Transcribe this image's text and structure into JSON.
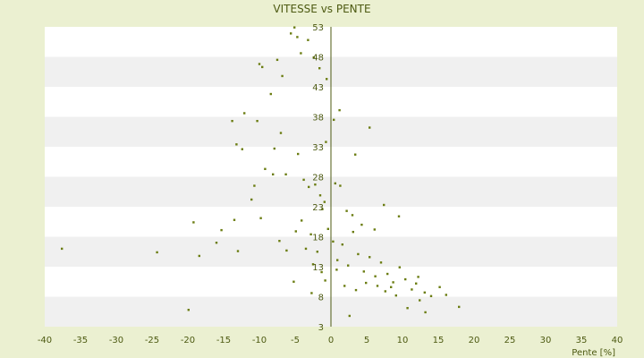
{
  "chart_data": {
    "type": "scatter",
    "title": "VITESSE vs PENTE",
    "xlabel": "Pente [%]",
    "ylabel": "",
    "xlim": [
      -40,
      40
    ],
    "ylim": [
      3,
      53
    ],
    "xticks": [
      "-40",
      "-35",
      "-30",
      "-25",
      "-20",
      "-15",
      "-10",
      "-5",
      "0",
      "5",
      "10",
      "15",
      "20",
      "25",
      "30",
      "35",
      "40"
    ],
    "yticks": [
      "3",
      "8",
      "13",
      "18",
      "23",
      "28",
      "33",
      "38",
      "43",
      "48",
      "53"
    ],
    "grid": true,
    "legend": "none",
    "colors": {
      "background": "#ebf0d1",
      "band_light": "#ffffff",
      "band_dark": "#f0f0f0",
      "point": "#6b7d12",
      "text": "#4d5a12",
      "axis": "#4d5a12"
    },
    "series": [
      {
        "values": [
          [
            -37.6,
            16
          ],
          [
            -24.3,
            15.4
          ],
          [
            -19.9,
            5.8
          ],
          [
            -19.2,
            20.4
          ],
          [
            -18.4,
            14.8
          ],
          [
            -16,
            17
          ],
          [
            -15.3,
            19.1
          ],
          [
            -13.5,
            20.8
          ],
          [
            -13,
            15.6
          ],
          [
            -13.8,
            37.3
          ],
          [
            -13.2,
            33.4
          ],
          [
            -12.4,
            32.6
          ],
          [
            -12.1,
            38.6
          ],
          [
            -11.1,
            24.2
          ],
          [
            -10.3,
            37.3
          ],
          [
            -10,
            46.8
          ],
          [
            -9.6,
            46.3
          ],
          [
            -9.2,
            29.3
          ],
          [
            -8.4,
            41.8
          ],
          [
            -8.1,
            28.4
          ],
          [
            -7.5,
            47.5
          ],
          [
            -7,
            35.3
          ],
          [
            -6.8,
            44.8
          ],
          [
            -6.3,
            28.4
          ],
          [
            -5.6,
            51.9
          ],
          [
            -5.1,
            52.9
          ],
          [
            -4.7,
            51.3
          ],
          [
            -4.2,
            48.6
          ],
          [
            -3.2,
            50.8
          ],
          [
            -2.4,
            47.9
          ],
          [
            -1.6,
            46.1
          ],
          [
            -0.6,
            44.3
          ],
          [
            -3.8,
            27.5
          ],
          [
            -3.1,
            26.3
          ],
          [
            -2.2,
            26.7
          ],
          [
            -1.5,
            24.9
          ],
          [
            -0.9,
            23.8
          ],
          [
            0.6,
            26.9
          ],
          [
            1.3,
            26.5
          ],
          [
            2.2,
            22.3
          ],
          [
            3,
            21.6
          ],
          [
            -4.9,
            18.9
          ],
          [
            -4.1,
            20.7
          ],
          [
            -3.5,
            16
          ],
          [
            -2.8,
            18.4
          ],
          [
            -1.9,
            15.5
          ],
          [
            -1.2,
            22.6
          ],
          [
            -0.4,
            19.3
          ],
          [
            0.3,
            17.2
          ],
          [
            0.9,
            14.1
          ],
          [
            1.6,
            16.7
          ],
          [
            2.4,
            13.2
          ],
          [
            3.1,
            18.8
          ],
          [
            3.8,
            15.1
          ],
          [
            4.6,
            12.2
          ],
          [
            5.4,
            14.6
          ],
          [
            6.2,
            11.4
          ],
          [
            7,
            13.7
          ],
          [
            7.9,
            11.8
          ],
          [
            8.7,
            10.4
          ],
          [
            9.6,
            12.9
          ],
          [
            10.4,
            10.9
          ],
          [
            11.3,
            9.2
          ],
          [
            12.2,
            11.3
          ],
          [
            13.1,
            8.7
          ],
          [
            14,
            8.1
          ],
          [
            15.2,
            9.6
          ],
          [
            16.1,
            8.3
          ],
          [
            17.9,
            6.3
          ],
          [
            10.7,
            6.1
          ],
          [
            13.2,
            5.4
          ],
          [
            2.6,
            4.8
          ],
          [
            -5.2,
            10.5
          ],
          [
            -2.7,
            8.6
          ],
          [
            -0.8,
            10.7
          ],
          [
            0.8,
            12.5
          ],
          [
            1.9,
            9.8
          ],
          [
            3.5,
            9.1
          ],
          [
            4.9,
            10.3
          ],
          [
            6.5,
            9.8
          ],
          [
            7.6,
            8.9
          ],
          [
            8.4,
            9.6
          ],
          [
            9.1,
            8.2
          ],
          [
            0.4,
            37.5
          ],
          [
            1.2,
            39.1
          ],
          [
            5.4,
            36.2
          ],
          [
            3.4,
            31.7
          ],
          [
            -0.7,
            33.8
          ],
          [
            -4.6,
            31.8
          ],
          [
            -7.9,
            32.7
          ],
          [
            -10.7,
            26.5
          ],
          [
            -9.8,
            21.1
          ],
          [
            -7.2,
            17.3
          ],
          [
            -6.2,
            15.7
          ],
          [
            -1.3,
            12.1
          ],
          [
            -2.5,
            13.4
          ],
          [
            4.3,
            20
          ],
          [
            6.1,
            19.2
          ],
          [
            7.4,
            23.3
          ],
          [
            9.5,
            21.4
          ],
          [
            11.9,
            10.2
          ],
          [
            12.4,
            7.4
          ]
        ]
      }
    ]
  }
}
